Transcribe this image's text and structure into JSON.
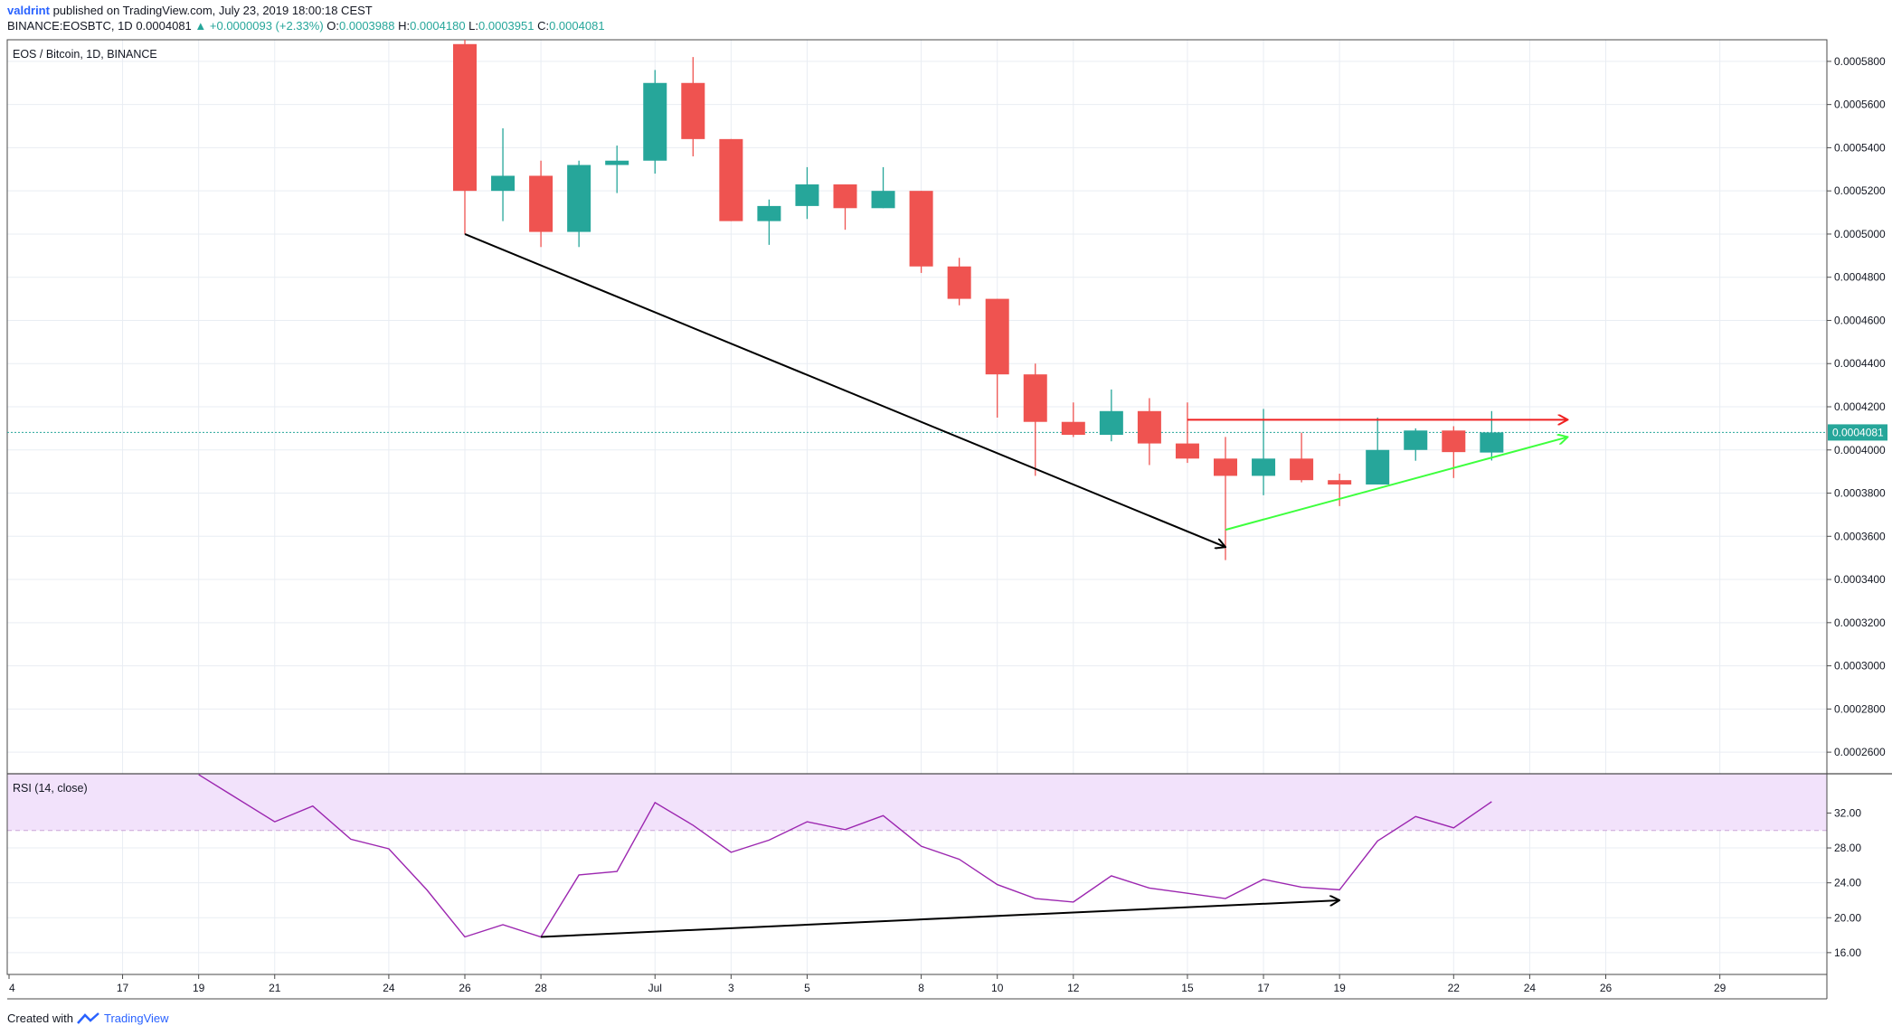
{
  "header": {
    "user": "valdrint",
    "published_text": " published on TradingView.com, July 23, 2019 18:00:18 CEST",
    "symbol_line": "BINANCE:EOSBTC, 1D",
    "last_price": "0.0004081",
    "change": "▲ +0.0000093 (+2.33%)",
    "o_label": "O:",
    "o_value": "0.0003988",
    "h_label": "H:",
    "h_value": "0.0004180",
    "l_label": "L:",
    "l_value": "0.0003951",
    "c_label": "C:",
    "c_value": "0.0004081"
  },
  "footer": {
    "created_with": "Created with",
    "brand": "TradingView"
  },
  "colors": {
    "up": "#26a69a",
    "down": "#ef5350",
    "rsi_line": "#9c27b0",
    "rsi_band": "#f2e2fb",
    "grid": "#e9edf3",
    "price_line": "#26a69a",
    "red_arrow": "#ef2020",
    "green_arrow": "#3dff3d"
  },
  "chart_data": [
    {
      "type": "candlestick",
      "title": "EOS / Bitcoin, 1D, BINANCE",
      "x_tick_labels": [
        "4",
        "17",
        "19",
        "21",
        "24",
        "26",
        "28",
        "Jul",
        "3",
        "5",
        "8",
        "10",
        "12",
        "15",
        "17",
        "19",
        "22",
        "24",
        "26",
        "29"
      ],
      "ylim": [
        0.00025,
        0.00059
      ],
      "y_tick_labels": [
        "0.0005800",
        "0.0005600",
        "0.0005400",
        "0.0005200",
        "0.0005000",
        "0.0004800",
        "0.0004600",
        "0.0004400",
        "0.0004200",
        "0.0004000",
        "0.0003800",
        "0.0003600",
        "0.0003400",
        "0.0003200",
        "0.0003000",
        "0.0002800",
        "0.0002600"
      ],
      "y_ticks": [
        0.00058,
        0.00056,
        0.00054,
        0.00052,
        0.0005,
        0.00048,
        0.00046,
        0.00044,
        0.00042,
        0.0004,
        0.00038,
        0.00036,
        0.00034,
        0.00032,
        0.0003,
        0.00028,
        0.00026
      ],
      "last_price_label": "0.0004081",
      "last_price": 0.0004081,
      "candles": [
        {
          "date": "Jun 26",
          "o": 0.000588,
          "h": 0.000595,
          "l": 0.0005,
          "c": 0.00052
        },
        {
          "date": "Jun 27",
          "o": 0.00052,
          "h": 0.000549,
          "l": 0.000506,
          "c": 0.000527
        },
        {
          "date": "Jun 28",
          "o": 0.000527,
          "h": 0.000534,
          "l": 0.000494,
          "c": 0.000501
        },
        {
          "date": "Jun 29",
          "o": 0.000501,
          "h": 0.000534,
          "l": 0.000494,
          "c": 0.000532
        },
        {
          "date": "Jun 30",
          "o": 0.000532,
          "h": 0.000541,
          "l": 0.000519,
          "c": 0.000534
        },
        {
          "date": "Jul 1",
          "o": 0.000534,
          "h": 0.000576,
          "l": 0.000528,
          "c": 0.00057
        },
        {
          "date": "Jul 2",
          "o": 0.00057,
          "h": 0.000582,
          "l": 0.000536,
          "c": 0.000544
        },
        {
          "date": "Jul 3",
          "o": 0.000544,
          "h": 0.000544,
          "l": 0.000506,
          "c": 0.000506
        },
        {
          "date": "Jul 4",
          "o": 0.000506,
          "h": 0.000516,
          "l": 0.000495,
          "c": 0.000513
        },
        {
          "date": "Jul 5",
          "o": 0.000513,
          "h": 0.000531,
          "l": 0.000507,
          "c": 0.000523
        },
        {
          "date": "Jul 6",
          "o": 0.000523,
          "h": 0.000523,
          "l": 0.000502,
          "c": 0.000512
        },
        {
          "date": "Jul 7",
          "o": 0.000512,
          "h": 0.000531,
          "l": 0.000512,
          "c": 0.00052
        },
        {
          "date": "Jul 8",
          "o": 0.00052,
          "h": 0.00052,
          "l": 0.000482,
          "c": 0.000485
        },
        {
          "date": "Jul 9",
          "o": 0.000485,
          "h": 0.000489,
          "l": 0.000467,
          "c": 0.00047
        },
        {
          "date": "Jul 10",
          "o": 0.00047,
          "h": 0.00047,
          "l": 0.000415,
          "c": 0.000435
        },
        {
          "date": "Jul 11",
          "o": 0.000435,
          "h": 0.00044,
          "l": 0.000388,
          "c": 0.000413
        },
        {
          "date": "Jul 12",
          "o": 0.000413,
          "h": 0.000422,
          "l": 0.000406,
          "c": 0.000407
        },
        {
          "date": "Jul 13",
          "o": 0.000407,
          "h": 0.000428,
          "l": 0.000404,
          "c": 0.000418
        },
        {
          "date": "Jul 14",
          "o": 0.000418,
          "h": 0.000424,
          "l": 0.000393,
          "c": 0.000403
        },
        {
          "date": "Jul 15",
          "o": 0.000403,
          "h": 0.000422,
          "l": 0.000394,
          "c": 0.000396
        },
        {
          "date": "Jul 16",
          "o": 0.000396,
          "h": 0.000406,
          "l": 0.000349,
          "c": 0.000388
        },
        {
          "date": "Jul 17",
          "o": 0.000388,
          "h": 0.000419,
          "l": 0.000379,
          "c": 0.000396
        },
        {
          "date": "Jul 18",
          "o": 0.000396,
          "h": 0.000408,
          "l": 0.000385,
          "c": 0.000386
        },
        {
          "date": "Jul 19",
          "o": 0.000386,
          "h": 0.000389,
          "l": 0.000374,
          "c": 0.000384
        },
        {
          "date": "Jul 20",
          "o": 0.000384,
          "h": 0.000415,
          "l": 0.000384,
          "c": 0.0004
        },
        {
          "date": "Jul 21",
          "o": 0.0004,
          "h": 0.00041,
          "l": 0.000395,
          "c": 0.000409
        },
        {
          "date": "Jul 22",
          "o": 0.000409,
          "h": 0.000411,
          "l": 0.000387,
          "c": 0.000399
        },
        {
          "date": "Jul 23",
          "o": 0.0003988,
          "h": 0.000418,
          "l": 0.0003951,
          "c": 0.0004081
        }
      ],
      "annotations": [
        {
          "type": "arrow",
          "color": "black",
          "from": {
            "date": "Jun 26",
            "value": 0.0005
          },
          "to": {
            "date": "Jul 16",
            "value": 0.000355
          }
        },
        {
          "type": "arrow",
          "color": "red",
          "from": {
            "date": "Jul 15",
            "value": 0.000414
          },
          "to": {
            "date": "Jul 25",
            "value": 0.000414
          }
        },
        {
          "type": "arrow",
          "color": "green",
          "from": {
            "date": "Jul 16",
            "value": 0.000363
          },
          "to": {
            "date": "Jul 25",
            "value": 0.000406
          }
        }
      ]
    },
    {
      "type": "line",
      "title": "RSI (14, close)",
      "ylim": [
        13.5,
        36.5
      ],
      "y_tick_labels": [
        "32.00",
        "28.00",
        "24.00",
        "20.00",
        "16.00"
      ],
      "y_ticks": [
        32,
        28,
        24,
        20,
        16
      ],
      "band": {
        "lower": 30,
        "upper": 36.5
      },
      "series": [
        {
          "points": [
            {
              "date": "Jun 19",
              "value": 36.4
            },
            {
              "date": "Jun 21",
              "value": 31.0
            },
            {
              "date": "Jun 22",
              "value": 32.8
            },
            {
              "date": "Jun 23",
              "value": 29.0
            },
            {
              "date": "Jun 24",
              "value": 27.9
            },
            {
              "date": "Jun 25",
              "value": 23.2
            },
            {
              "date": "Jun 26",
              "value": 17.8
            },
            {
              "date": "Jun 27",
              "value": 19.2
            },
            {
              "date": "Jun 28",
              "value": 17.8
            },
            {
              "date": "Jun 29",
              "value": 24.9
            },
            {
              "date": "Jun 30",
              "value": 25.3
            },
            {
              "date": "Jul 1",
              "value": 33.2
            },
            {
              "date": "Jul 2",
              "value": 30.6
            },
            {
              "date": "Jul 3",
              "value": 27.5
            },
            {
              "date": "Jul 4",
              "value": 28.9
            },
            {
              "date": "Jul 5",
              "value": 31.0
            },
            {
              "date": "Jul 6",
              "value": 30.1
            },
            {
              "date": "Jul 7",
              "value": 31.7
            },
            {
              "date": "Jul 8",
              "value": 28.2
            },
            {
              "date": "Jul 9",
              "value": 26.7
            },
            {
              "date": "Jul 10",
              "value": 23.8
            },
            {
              "date": "Jul 11",
              "value": 22.2
            },
            {
              "date": "Jul 12",
              "value": 21.8
            },
            {
              "date": "Jul 13",
              "value": 24.8
            },
            {
              "date": "Jul 14",
              "value": 23.4
            },
            {
              "date": "Jul 15",
              "value": 22.8
            },
            {
              "date": "Jul 16",
              "value": 22.2
            },
            {
              "date": "Jul 17",
              "value": 24.4
            },
            {
              "date": "Jul 18",
              "value": 23.5
            },
            {
              "date": "Jul 19",
              "value": 23.2
            },
            {
              "date": "Jul 20",
              "value": 28.8
            },
            {
              "date": "Jul 21",
              "value": 31.6
            },
            {
              "date": "Jul 22",
              "value": 30.3
            },
            {
              "date": "Jul 23",
              "value": 33.3
            }
          ]
        }
      ],
      "annotations": [
        {
          "type": "arrow",
          "color": "black",
          "from": {
            "date": "Jun 28",
            "value": 17.8
          },
          "to": {
            "date": "Jul 19",
            "value": 22.0
          }
        }
      ]
    }
  ]
}
